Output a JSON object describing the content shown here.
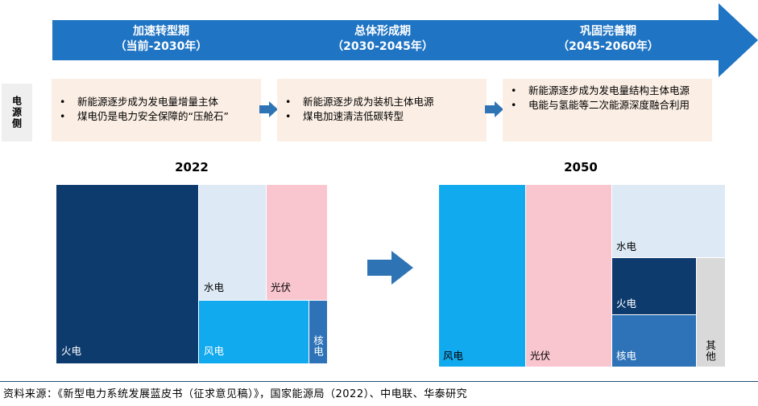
{
  "timeline": {
    "phases": [
      {
        "name": "加速转型期",
        "period": "（当前-2030年）"
      },
      {
        "name": "总体形成期",
        "period": "（2030-2045年）"
      },
      {
        "name": "巩固完善期",
        "period": "（2045-2060年）"
      }
    ]
  },
  "supply_side_label": "电源侧",
  "stages": [
    {
      "bullets": [
        "新能源逐步成为发电量增量主体",
        "煤电仍是电力安全保障的“压舱石”"
      ]
    },
    {
      "bullets": [
        "新能源逐步成为装机主体电源",
        "煤电加速清洁低碳转型"
      ]
    },
    {
      "bullets": [
        "新能源逐步成为发电量结构主体电源",
        "电能与氢能等二次能源深度融合利用"
      ]
    }
  ],
  "chart_data": [
    {
      "type": "treemap",
      "title": "2022",
      "categories": [
        "火电",
        "水电",
        "光伏",
        "风电",
        "核电"
      ],
      "values": [
        52.9,
        15.8,
        13.9,
        19.0,
        3.6
      ],
      "unit": "share of area (%, estimated)"
    },
    {
      "type": "treemap",
      "title": "2050",
      "categories": [
        "风电",
        "光伏",
        "水电",
        "火电",
        "核电",
        "其他"
      ],
      "values": [
        28.5,
        28.5,
        13.9,
        10.8,
        11.7,
        6.6
      ],
      "unit": "share of area (%, estimated)"
    }
  ],
  "colors": {
    "banner": "#1f74c3",
    "火电": "#0e3b6e",
    "水电": "#ddeaf5",
    "光伏": "#f9c6cf",
    "风电": "#12aaee",
    "核电": "#2e73b8",
    "其他": "#d9d9d9",
    "stage_bg": "#fbeee4",
    "small_arrow": "#2e74b5"
  },
  "source_text": "资料来源：《新型电力系统发展蓝皮书（征求意见稿）》，国家能源局（2022）、中电联、华泰研究"
}
